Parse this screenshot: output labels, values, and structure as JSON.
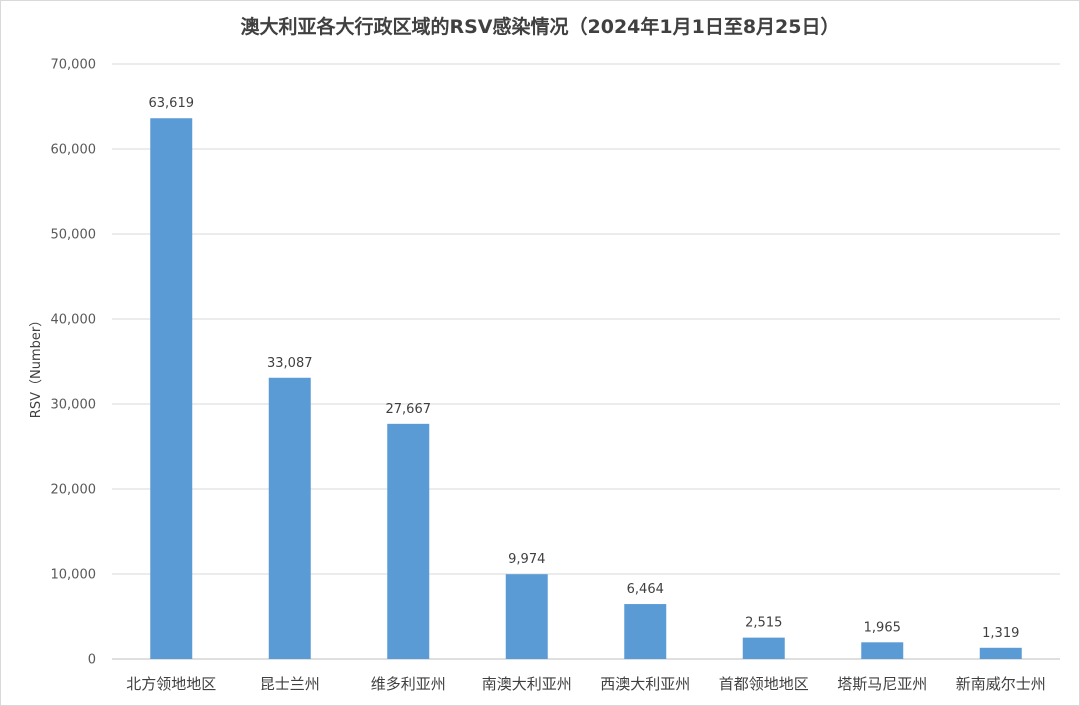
{
  "chart_data": {
    "type": "bar",
    "title": "澳大利亚各大行政区域的RSV感染情况（2024年1月1日至8月25日）",
    "ylabel": "RSV（Number）",
    "xlabel": "",
    "ylim": [
      0,
      70000
    ],
    "ytick_labels": [
      "0",
      "10,000",
      "20,000",
      "30,000",
      "40,000",
      "50,000",
      "60,000",
      "70,000"
    ],
    "categories": [
      "北方领地地区",
      "昆士兰州",
      "维多利亚州",
      "南澳大利亚州",
      "西澳大利亚州",
      "首都领地地区",
      "塔斯马尼亚州",
      "新南威尔士州"
    ],
    "values": [
      63619,
      33087,
      27667,
      9974,
      6464,
      2515,
      1965,
      1319
    ],
    "value_labels": [
      "63,619",
      "33,087",
      "27,667",
      "9,974",
      "6,464",
      "2,515",
      "1,965",
      "1,319"
    ],
    "bar_color": "#5b9bd5",
    "grid": true,
    "legend": "none"
  }
}
